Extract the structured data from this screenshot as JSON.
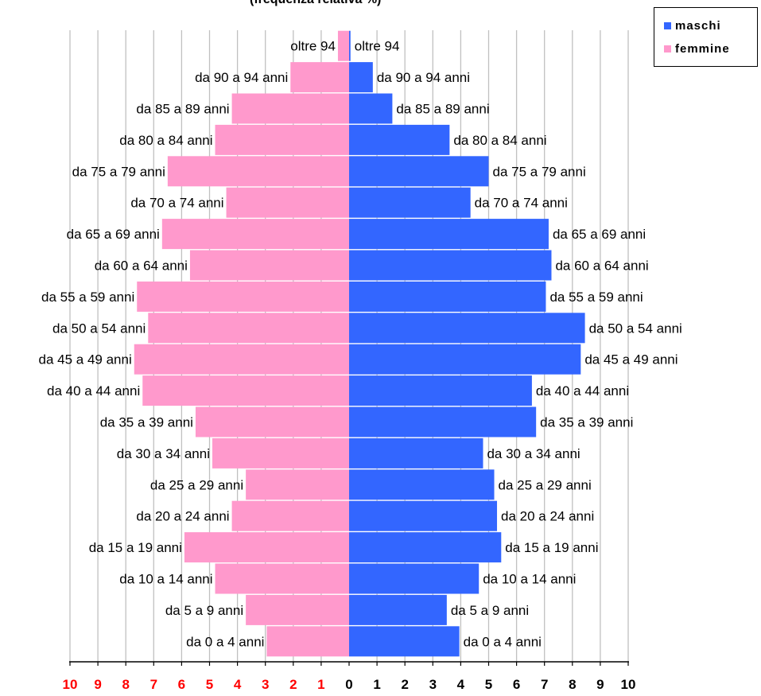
{
  "chart_data": {
    "type": "bar",
    "title": "(frequenza relativa %)",
    "categories": [
      "oltre 94",
      "da 90 a 94 anni",
      "da 85 a 89 anni",
      "da 80 a 84 anni",
      "da 75 a 79 anni",
      "da 70 a 74 anni",
      "da 65 a 69 anni",
      "da 60 a 64 anni",
      "da 55 a 59 anni",
      "da 50 a 54 anni",
      "da 45 a 49 anni",
      "da 40 a 44 anni",
      "da 35 a 39 anni",
      "da 30 a 34 anni",
      "da 25 a 29 anni",
      "da 20 a 24 anni",
      "da 15 a 19 anni",
      "da 10 a 14 anni",
      "da 5 a 9 anni",
      "da 0 a 4 anni"
    ],
    "series": [
      {
        "name": "maschi",
        "color": "#3366ff",
        "values": [
          0.05,
          0.85,
          1.55,
          3.6,
          5.0,
          4.35,
          7.15,
          7.25,
          7.05,
          8.45,
          8.3,
          6.55,
          6.7,
          4.8,
          5.2,
          5.3,
          5.45,
          4.65,
          3.5,
          3.95
        ]
      },
      {
        "name": "femmine",
        "color": "#ff99cc",
        "values": [
          0.4,
          2.1,
          4.2,
          4.8,
          6.5,
          4.4,
          6.7,
          5.7,
          7.6,
          7.2,
          7.7,
          7.4,
          5.5,
          4.9,
          3.7,
          4.2,
          5.9,
          4.8,
          3.7,
          2.95
        ]
      }
    ],
    "xlim": [
      -10,
      10
    ],
    "x_ticks": [
      "10",
      "9",
      "8",
      "7",
      "6",
      "5",
      "4",
      "3",
      "2",
      "1",
      "0",
      "1",
      "2",
      "3",
      "4",
      "5",
      "6",
      "7",
      "8",
      "9",
      "10"
    ],
    "x_tick_colors": {
      "femmine": "#ff0000",
      "maschi": "#000000"
    },
    "grid": true,
    "legend": "top-right"
  }
}
